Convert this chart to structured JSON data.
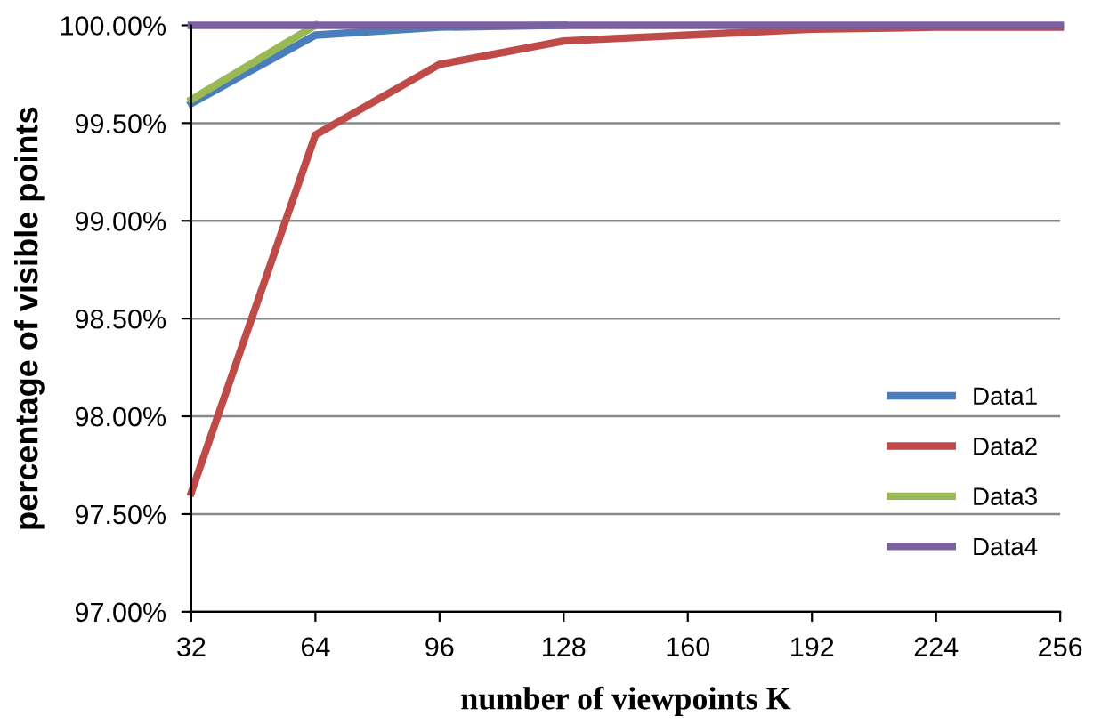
{
  "chart_data": {
    "type": "line",
    "xlabel": "number of viewpoints K",
    "ylabel": "percentage of visible points",
    "categories": [
      "32",
      "64",
      "96",
      "128",
      "160",
      "192",
      "224",
      "256"
    ],
    "series": [
      {
        "name": "Data1",
        "color": "#4a7ebb",
        "values": [
          99.6,
          99.95,
          99.99,
          100,
          null,
          null,
          null,
          null
        ]
      },
      {
        "name": "Data2",
        "color": "#be4b48",
        "values": [
          97.61,
          99.44,
          99.8,
          99.92,
          99.95,
          99.98,
          99.99,
          99.99
        ]
      },
      {
        "name": "Data3",
        "color": "#98b954",
        "values": [
          99.62,
          100,
          null,
          null,
          null,
          null,
          null,
          null
        ]
      },
      {
        "name": "Data4",
        "color": "#7d60a0",
        "values": [
          100,
          100,
          100,
          100,
          100,
          100,
          100,
          100
        ]
      }
    ],
    "ylim": [
      97,
      100
    ],
    "yticks": [
      {
        "value": 97,
        "label": "97.00%"
      },
      {
        "value": 97.5,
        "label": "97.50%"
      },
      {
        "value": 98,
        "label": "98.00%"
      },
      {
        "value": 98.5,
        "label": "98.50%"
      },
      {
        "value": 99,
        "label": "99.00%"
      },
      {
        "value": 99.5,
        "label": "99.50%"
      },
      {
        "value": 100,
        "label": "100.00%"
      }
    ],
    "grid": "y",
    "legend": "bottom right",
    "marker": "none",
    "line_style": "solid"
  }
}
